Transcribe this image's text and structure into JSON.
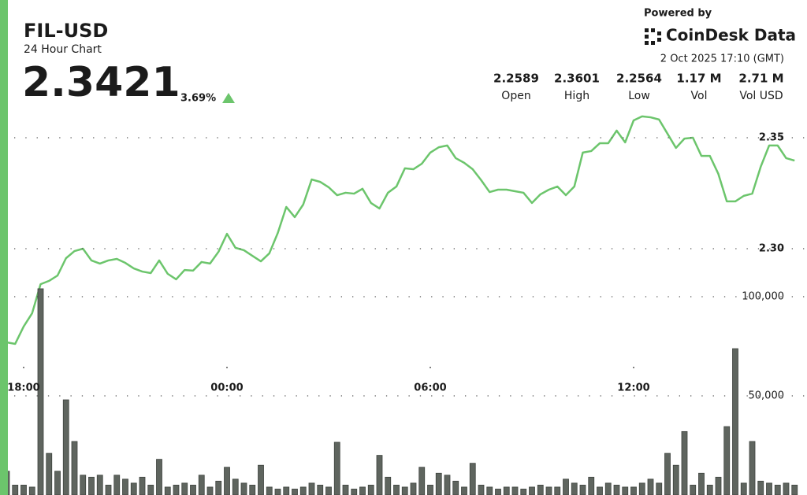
{
  "header": {
    "symbol": "FIL-USD",
    "subtitle": "24 Hour Chart",
    "price": "2.3421",
    "change": "3.69%",
    "powered_by": "Powered by",
    "brand": "CoinDesk Data",
    "timestamp": "2 Oct 2025 17:10 (GMT)"
  },
  "stats": [
    {
      "value": "2.2589",
      "label": "Open"
    },
    {
      "value": "2.3601",
      "label": "High"
    },
    {
      "value": "2.2564",
      "label": "Low"
    },
    {
      "value": "1.17 M",
      "label": "Vol"
    },
    {
      "value": "2.71 M",
      "label": "Vol USD"
    }
  ],
  "chart_data": [
    {
      "type": "area",
      "color": "#6cc56c",
      "grid": true,
      "categories": [
        null,
        null,
        "18:00",
        null,
        null,
        null,
        null,
        null,
        null,
        null,
        null,
        null,
        null,
        null,
        null,
        null,
        null,
        null,
        null,
        null,
        null,
        null,
        null,
        null,
        null,
        null,
        "00:00",
        null,
        null,
        null,
        null,
        null,
        null,
        null,
        null,
        null,
        null,
        null,
        null,
        null,
        null,
        null,
        null,
        null,
        null,
        null,
        null,
        null,
        null,
        null,
        "06:00",
        null,
        null,
        null,
        null,
        null,
        null,
        null,
        null,
        null,
        null,
        null,
        null,
        null,
        null,
        null,
        null,
        null,
        null,
        null,
        null,
        null,
        null,
        null,
        "12:00",
        null,
        null,
        null,
        null,
        null,
        null,
        null,
        null,
        null,
        null,
        null,
        null,
        null,
        null,
        null,
        null,
        null,
        null,
        null
      ],
      "values": [
        2.2578,
        2.2571,
        2.2649,
        2.2709,
        2.284,
        2.2855,
        2.2879,
        2.2957,
        2.2989,
        2.3,
        2.2947,
        2.2933,
        2.2947,
        2.2954,
        2.2936,
        2.2911,
        2.2897,
        2.289,
        2.2947,
        2.2887,
        2.2862,
        2.2904,
        2.2901,
        2.294,
        2.2933,
        2.2986,
        2.3067,
        2.3004,
        2.2993,
        2.2968,
        2.2943,
        2.2979,
        2.3071,
        2.3188,
        2.3142,
        2.3199,
        2.3312,
        2.3301,
        2.3277,
        2.3241,
        2.3252,
        2.3248,
        2.327,
        2.3206,
        2.3181,
        2.3252,
        2.328,
        2.3362,
        2.3358,
        2.3383,
        2.3433,
        2.3457,
        2.3465,
        2.3408,
        2.3387,
        2.3358,
        2.3309,
        2.3255,
        2.3266,
        2.3266,
        2.3259,
        2.3252,
        2.3206,
        2.3245,
        2.3266,
        2.328,
        2.3241,
        2.328,
        2.3433,
        2.344,
        2.3475,
        2.3475,
        2.3532,
        2.3479,
        2.3578,
        2.3596,
        2.3592,
        2.3582,
        2.3518,
        2.3454,
        2.3496,
        2.35,
        2.3418,
        2.3418,
        2.3337,
        2.3213,
        2.3213,
        2.3238,
        2.3248,
        2.3369,
        2.3465,
        2.3465,
        2.3408,
        2.3397
      ],
      "ylim": [
        2.25,
        2.365
      ],
      "yticks": [
        {
          "value": 2.3,
          "label": "2.30"
        },
        2.35
      ]
    },
    {
      "type": "bar",
      "color": "#5f655f",
      "grid": true,
      "values": [
        12000,
        5000,
        5000,
        4000,
        104000,
        21000,
        12000,
        48000,
        27000,
        10000,
        9000,
        10000,
        5000,
        10000,
        8000,
        6000,
        9000,
        5000,
        18000,
        4000,
        5000,
        6000,
        5000,
        10000,
        4000,
        7000,
        14000,
        8000,
        6000,
        5000,
        15000,
        4000,
        3000,
        4000,
        3000,
        4000,
        6000,
        5000,
        4000,
        26600,
        5000,
        3000,
        4000,
        5000,
        20000,
        9000,
        5000,
        4000,
        6000,
        14000,
        5000,
        11000,
        10000,
        7000,
        4000,
        16000,
        5000,
        4000,
        3000,
        4000,
        4000,
        3000,
        4000,
        5000,
        4000,
        4000,
        8000,
        6000,
        5000,
        9000,
        4000,
        6000,
        5000,
        4000,
        4000,
        6000,
        8000,
        6000,
        21000,
        15000,
        32000,
        5000,
        11000,
        5000,
        9000,
        34500,
        73800,
        6000,
        27000,
        7000,
        6000,
        5000,
        6000,
        5000
      ],
      "ylim": [
        0,
        120000
      ],
      "yticks": [
        {
          "value": 50000,
          "label": "50,000"
        },
        {
          "value": 100000,
          "label": "100,000"
        }
      ]
    }
  ]
}
